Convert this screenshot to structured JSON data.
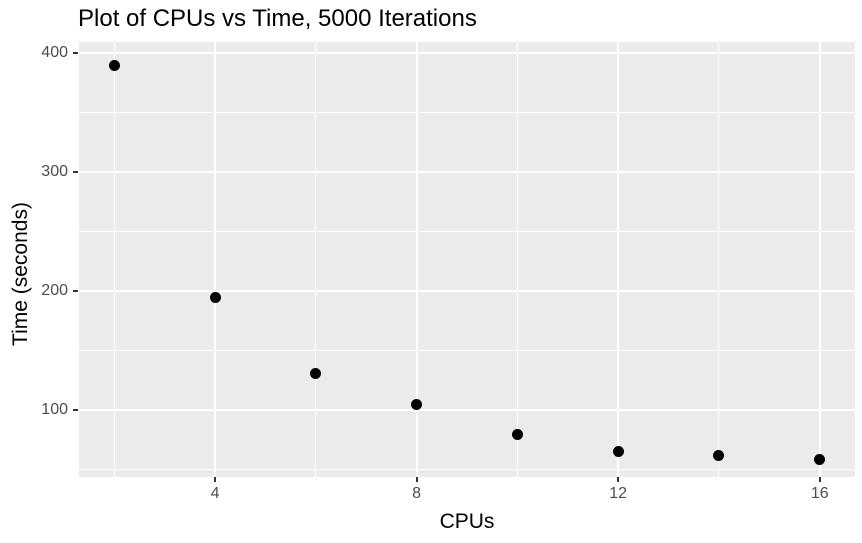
{
  "chart_data": {
    "type": "scatter",
    "title": "Plot of CPUs vs Time, 5000 Iterations",
    "xlabel": "CPUs",
    "ylabel": "Time (seconds)",
    "x": [
      2,
      4,
      6,
      8,
      10,
      12,
      14,
      16
    ],
    "y": [
      389,
      195,
      131,
      105,
      80,
      65,
      62,
      59
    ],
    "x_major_ticks": [
      4,
      8,
      12,
      16
    ],
    "x_minor_ticks": [
      2,
      6,
      10,
      14
    ],
    "y_major_ticks": [
      100,
      200,
      300,
      400
    ],
    "y_minor_ticks": [
      50,
      150,
      250,
      350
    ],
    "xlim": [
      1.3,
      16.7
    ],
    "ylim": [
      44,
      409
    ],
    "grid": "major-and-minor",
    "legend": "none",
    "colors": {
      "point": "#000000",
      "panel_background": "#EBEBEB",
      "gridline": "#FFFFFF",
      "tick_mark": "#333333",
      "tick_label": "#4D4D4D",
      "title_text": "#000000",
      "axis_title_text": "#000000",
      "figure_background": "#FFFFFF"
    }
  }
}
